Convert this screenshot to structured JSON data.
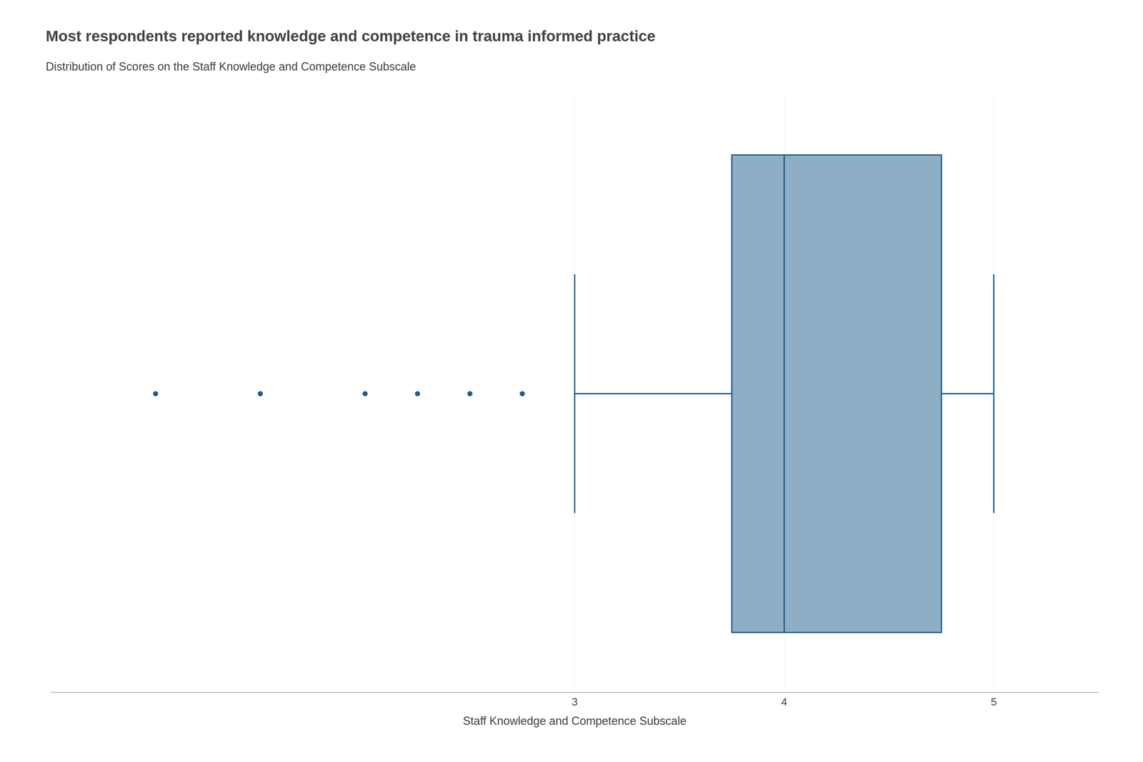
{
  "chart_data": {
    "type": "box",
    "title": "Most respondents reported knowledge and competence in trauma informed practice",
    "subtitle": "Distribution of Scores on the Staff Knowledge and Competence Subscale",
    "xlabel": "Staff Knowledge and Competence Subscale",
    "q1": 3.75,
    "median": 4.0,
    "q3": 4.75,
    "whisker_low": 3.0,
    "whisker_high": 5.0,
    "outliers": [
      1.0,
      1.5,
      2.0,
      2.25,
      2.5,
      2.75
    ],
    "color": "#1B5E8C",
    "xlim": [
      0.5,
      5.5
    ],
    "xticks": [
      3,
      4,
      5
    ],
    "grid": true,
    "tick_labels": "x"
  }
}
